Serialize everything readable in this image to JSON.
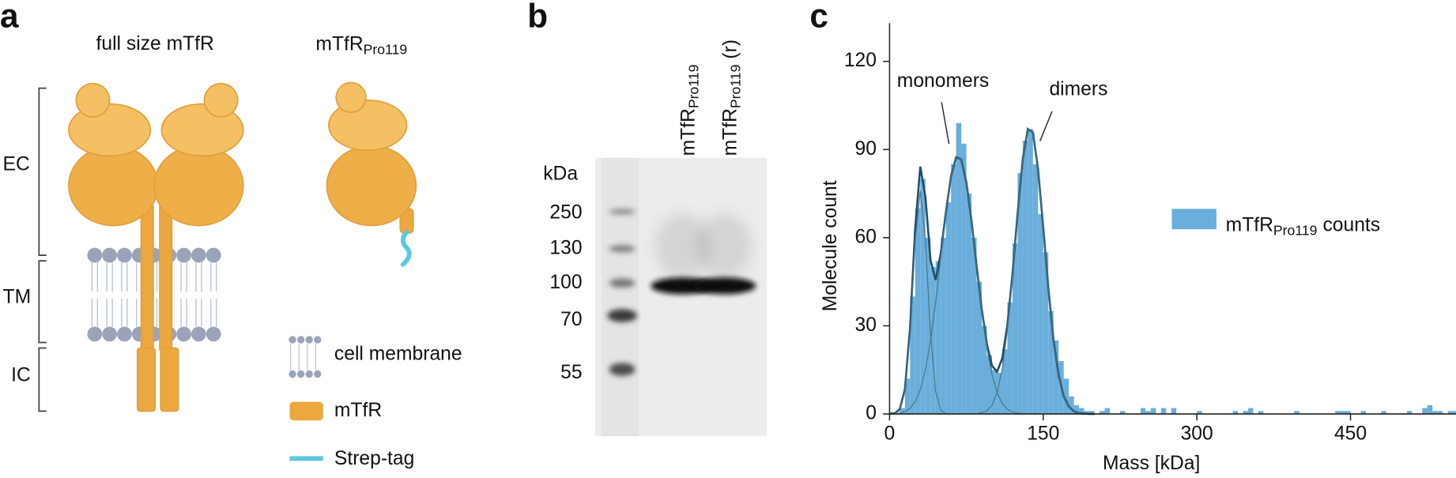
{
  "panel_a": {
    "label": "a",
    "title_full": "full size mTfR",
    "title_short": "mTfR",
    "title_short_sub": "Pro119",
    "regions": [
      "EC",
      "TM",
      "IC"
    ],
    "legend": [
      "cell membrane",
      "mTfR",
      "Strep-tag"
    ]
  },
  "panel_b": {
    "label": "b",
    "unit": "kDa",
    "markers": [
      250,
      130,
      100,
      70,
      55
    ],
    "lanes": [
      {
        "name": "mTfR",
        "sub": "Pro119"
      },
      {
        "name": "mTfR",
        "sub": "Pro119",
        "suffix": "(r)"
      }
    ]
  },
  "chart_data": {
    "type": "histogram",
    "panel_label": "c",
    "x_label": "Mass [kDa]",
    "y_label": "Molecule count",
    "xlim": [
      0,
      553
    ],
    "ylim": [
      0,
      133
    ],
    "xticks": [
      0,
      150,
      300,
      450
    ],
    "yticks": [
      0,
      30,
      60,
      90,
      120
    ],
    "color": "#6aaedb",
    "legend": {
      "name": "mTfR",
      "name_sub": "Pro119",
      "name_suffix": "counts"
    },
    "annotations": [
      "monomers",
      "dimers"
    ],
    "bins": [
      0,
      5,
      10,
      15,
      20,
      25,
      30,
      35,
      40,
      45,
      50,
      55,
      60,
      65,
      70,
      75,
      80,
      85,
      90,
      95,
      100,
      105,
      110,
      115,
      120,
      125,
      130,
      135,
      140,
      145,
      150,
      155,
      160,
      165,
      170,
      175,
      180,
      185,
      190,
      195,
      200,
      205,
      210,
      215,
      220,
      225,
      230,
      235,
      240,
      245,
      250,
      255,
      260,
      265,
      270,
      275,
      280,
      285,
      290,
      295,
      300,
      305,
      310,
      315,
      320,
      325,
      330,
      335,
      340,
      345,
      350,
      355,
      360,
      365,
      370,
      375,
      380,
      385,
      390,
      395,
      400,
      405,
      410,
      415,
      420,
      425,
      430,
      435,
      440,
      445,
      450,
      455,
      460,
      465,
      470,
      475,
      480,
      485,
      490,
      495,
      500,
      505,
      510,
      515,
      520,
      525,
      530,
      535,
      540,
      545,
      550,
      555
    ],
    "counts": [
      0,
      0,
      2,
      12,
      40,
      70,
      80,
      60,
      50,
      52,
      60,
      72,
      85,
      99,
      92,
      75,
      60,
      45,
      30,
      20,
      15,
      14,
      22,
      38,
      58,
      82,
      93,
      97,
      85,
      68,
      55,
      35,
      25,
      18,
      12,
      6,
      3,
      2,
      1,
      1,
      0,
      1,
      2,
      0,
      0,
      1,
      0,
      0,
      0,
      2,
      1,
      2,
      0,
      2,
      0,
      2,
      0,
      0,
      0,
      0,
      1,
      0,
      0,
      0,
      0,
      0,
      0,
      1,
      0,
      1,
      2,
      0,
      1,
      0,
      0,
      0,
      0,
      0,
      0,
      1,
      0,
      0,
      0,
      0,
      0,
      0,
      0,
      1,
      1,
      1,
      0,
      0,
      1,
      0,
      0,
      0,
      1,
      0,
      0,
      0,
      0,
      1,
      0,
      0,
      2,
      3,
      1,
      1,
      0,
      1,
      1
    ],
    "fit_x": [
      0,
      5,
      10,
      15,
      20,
      25,
      30,
      35,
      40,
      45,
      50,
      55,
      60,
      65,
      70,
      75,
      80,
      85,
      90,
      95,
      100,
      105,
      110,
      115,
      120,
      125,
      130,
      135,
      140,
      145,
      150,
      155,
      160,
      165,
      170,
      175,
      180,
      185,
      190,
      195,
      200
    ],
    "series": [
      {
        "color": "#1f4e66",
        "values": [
          0.1,
          0.2,
          1.6,
          8.4,
          29.2,
          63.1,
          84.2,
          73.9,
          52.3,
          45.6,
          54.7,
          68.7,
          80.9,
          87.4,
          86.6,
          78.8,
          65.7,
          50.4,
          35.6,
          23.8,
          16.4,
          14.4,
          18.9,
          30.2,
          47.6,
          68.2,
          86.6,
          97.0,
          95.8,
          83.2,
          63.6,
          42.9,
          25.3,
          13.3,
          6.1,
          2.5,
          0.9,
          0.3,
          0.1,
          0,
          0
        ]
      },
      {
        "color": "#4a7488",
        "values": [
          0,
          0.1,
          1.3,
          7.6,
          27.3,
          58.9,
          76,
          58.9,
          27.3,
          7.6,
          1.3,
          0.1,
          0,
          0,
          0,
          0,
          0,
          0,
          0,
          0,
          0,
          0,
          0,
          0,
          0,
          0,
          0,
          0,
          0,
          0,
          0,
          0,
          0,
          0,
          0,
          0,
          0,
          0,
          0,
          0,
          0
        ]
      },
      {
        "color": "#4a7488",
        "values": [
          0,
          0.1,
          0.3,
          0.8,
          1.9,
          4.2,
          8.2,
          15.0,
          25.0,
          38.0,
          53.4,
          68.6,
          80.9,
          87.4,
          86.6,
          78.8,
          65.7,
          50.3,
          35.2,
          22.7,
          13.4,
          7.2,
          3.6,
          1.6,
          0.7,
          0.3,
          0.1,
          0,
          0,
          0,
          0,
          0,
          0,
          0,
          0,
          0,
          0,
          0,
          0,
          0,
          0
        ]
      },
      {
        "color": "#4a7488",
        "values": [
          0,
          0,
          0,
          0,
          0,
          0,
          0,
          0,
          0,
          0,
          0,
          0,
          0,
          0,
          0,
          0,
          0,
          0.1,
          0.4,
          1.1,
          3.0,
          7.2,
          15.3,
          28.6,
          46.9,
          67.9,
          86.5,
          97.0,
          95.8,
          83.2,
          63.6,
          42.9,
          25.3,
          13.3,
          6.1,
          2.5,
          0.9,
          0.3,
          0.1,
          0,
          0
        ]
      }
    ]
  }
}
